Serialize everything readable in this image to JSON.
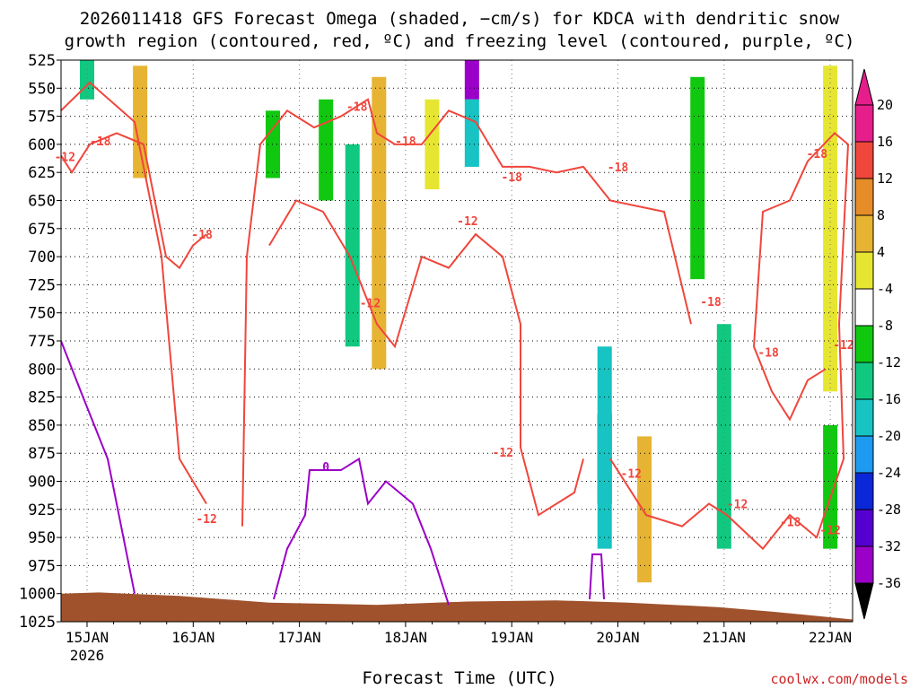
{
  "title_line1": "2026011418 GFS Forecast Omega (shaded, −cm/s) for KDCA with dendritic snow",
  "title_line2": "growth region (contoured, red, ºC) and freezing level (contoured, purple, ºC)",
  "credit": "coolwx.com/models",
  "chart_data": {
    "type": "heatmap",
    "title": "2026011418 GFS Forecast Omega (shaded, −cm/s) for KDCA with dendritic snow growth region (contoured, red, ºC) and freezing level (contoured, purple, ºC)",
    "xlabel": "Forecast Time (UTC)",
    "ylabel": "",
    "x_ticks": [
      "15JAN",
      "16JAN",
      "17JAN",
      "18JAN",
      "19JAN",
      "20JAN",
      "21JAN",
      "22JAN"
    ],
    "x_tick_sub": "2026",
    "y_ticks": [
      525,
      550,
      575,
      600,
      625,
      650,
      675,
      700,
      725,
      750,
      775,
      800,
      825,
      850,
      875,
      900,
      925,
      950,
      975,
      1000,
      1025
    ],
    "y_range": [
      525,
      1025
    ],
    "x_range_days": [
      "14JAN 18Z",
      "22JAN 06Z"
    ],
    "grid": "dotted",
    "colorbar": {
      "levels": [
        -36,
        -32,
        -28,
        -24,
        -20,
        -16,
        -12,
        -8,
        -4,
        4,
        8,
        12,
        16,
        20
      ],
      "colors": [
        "#000000",
        "#a0a0a0",
        "#9b00c8",
        "#5500d0",
        "#0a28d8",
        "#1e9bf0",
        "#17c3c3",
        "#10c880",
        "#10c810",
        "#ffffff",
        "#e6e632",
        "#e6b432",
        "#e68c28",
        "#f0463c",
        "#e61e8c"
      ],
      "over_color": "#e61e8c",
      "under_color": "#000000"
    },
    "omega_cells": [
      {
        "t": "15JAN 00Z",
        "p_top": 525,
        "p_bottom": 560,
        "value": -10
      },
      {
        "t": "15JAN 12Z",
        "p_top": 530,
        "p_bottom": 630,
        "value": 10
      },
      {
        "t": "16JAN 18Z",
        "p_top": 570,
        "p_bottom": 630,
        "value": -6
      },
      {
        "t": "17JAN 06Z",
        "p_top": 560,
        "p_bottom": 650,
        "value": -8
      },
      {
        "t": "17JAN 12Z",
        "p_top": 600,
        "p_bottom": 780,
        "value": -12
      },
      {
        "t": "17JAN 18Z",
        "p_top": 540,
        "p_bottom": 800,
        "value": 10
      },
      {
        "t": "18JAN 06Z",
        "p_top": 560,
        "p_bottom": 640,
        "value": 6
      },
      {
        "t": "18JAN 15Z",
        "p_top": 525,
        "p_bottom": 560,
        "value": -30
      },
      {
        "t": "18JAN 15Z",
        "p_top": 560,
        "p_bottom": 620,
        "value": -16
      },
      {
        "t": "19JAN 21Z",
        "p_top": 840,
        "p_bottom": 920,
        "value": -22
      },
      {
        "t": "19JAN 21Z",
        "p_top": 780,
        "p_bottom": 960,
        "value": -14
      },
      {
        "t": "20JAN 06Z",
        "p_top": 860,
        "p_bottom": 990,
        "value": 8
      },
      {
        "t": "20JAN 18Z",
        "p_top": 540,
        "p_bottom": 720,
        "value": -6
      },
      {
        "t": "21JAN 00Z",
        "p_top": 760,
        "p_bottom": 960,
        "value": -12
      },
      {
        "t": "22JAN 00Z",
        "p_top": 530,
        "p_bottom": 820,
        "value": 6
      },
      {
        "t": "22JAN 00Z",
        "p_top": 850,
        "p_bottom": 960,
        "value": -6
      }
    ],
    "contour_labels": {
      "dgz_red": [
        {
          "t": "14JAN 19Z",
          "p": 611,
          "label": "-12"
        },
        {
          "t": "15JAN 03Z",
          "p": 597,
          "label": "-18"
        },
        {
          "t": "16JAN 02Z",
          "p": 680,
          "label": "-18"
        },
        {
          "t": "16JAN 03Z",
          "p": 933,
          "label": "-12"
        },
        {
          "t": "17JAN 13Z",
          "p": 566,
          "label": "-18"
        },
        {
          "t": "17JAN 16Z",
          "p": 741,
          "label": "-12"
        },
        {
          "t": "18JAN 00Z",
          "p": 597,
          "label": "-18"
        },
        {
          "t": "18JAN 14Z",
          "p": 668,
          "label": "-12"
        },
        {
          "t": "19JAN 00Z",
          "p": 629,
          "label": "-18"
        },
        {
          "t": "18JAN 22Z",
          "p": 874,
          "label": "-12"
        },
        {
          "t": "20JAN 00Z",
          "p": 620,
          "label": "-18"
        },
        {
          "t": "20JAN 03Z",
          "p": 893,
          "label": "-12"
        },
        {
          "t": "20JAN 21Z",
          "p": 740,
          "label": "-18"
        },
        {
          "t": "21JAN 03Z",
          "p": 920,
          "label": "-12"
        },
        {
          "t": "21JAN 10Z",
          "p": 785,
          "label": "-18"
        },
        {
          "t": "21JAN 15Z",
          "p": 936,
          "label": "-18"
        },
        {
          "t": "21JAN 21Z",
          "p": 608,
          "label": "-18"
        },
        {
          "t": "22JAN 00Z",
          "p": 943,
          "label": "-12"
        },
        {
          "t": "22JAN 03Z",
          "p": 778,
          "label": "-12"
        }
      ],
      "freezing_purple": [
        {
          "t": "17JAN 06Z",
          "p": 887,
          "label": "0"
        }
      ]
    }
  }
}
